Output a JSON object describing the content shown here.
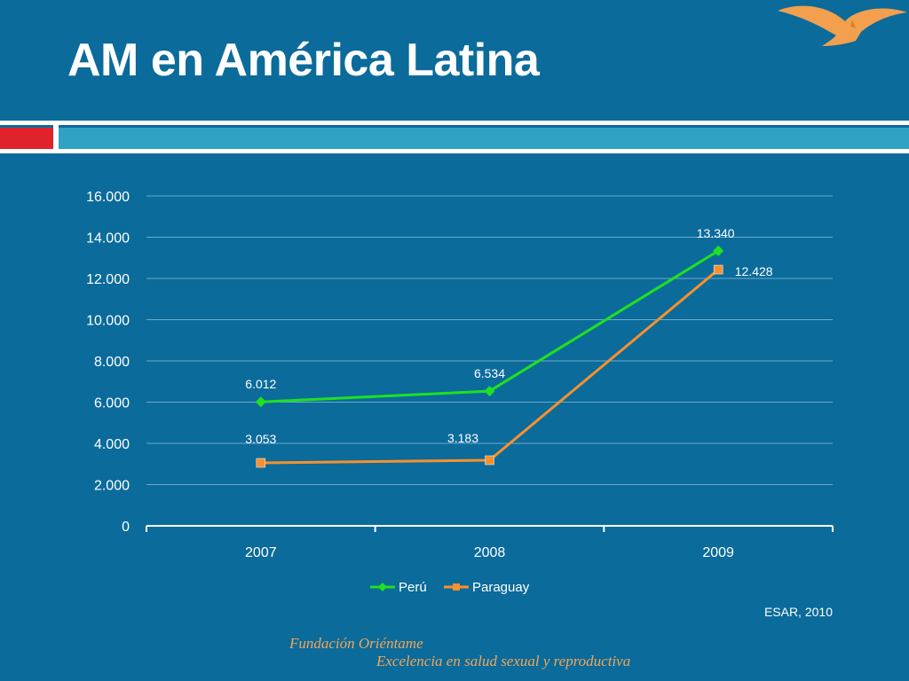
{
  "slide": {
    "title": "AM en América Latina",
    "source": "ESAR, 2010",
    "footer_org": "Fundación Oriéntame",
    "footer_tagline": "Excelencia en salud sexual y reproductiva"
  },
  "colors": {
    "background": "#0b6b9b",
    "accent_red": "#e0232a",
    "accent_teal": "#30a3c4",
    "peru_series": "#1fe11f",
    "paraguay_series": "#f7902e",
    "footer_text": "#f2a65a"
  },
  "icons": [
    "seagull-logo-icon"
  ],
  "chart_data": {
    "type": "line",
    "x": [
      "2007",
      "2008",
      "2009"
    ],
    "series": [
      {
        "name": "Perú",
        "values": [
          6012,
          6534,
          13340
        ],
        "labels": [
          "6.012",
          "6.534",
          "13.340"
        ],
        "color": "#1fe11f",
        "marker": "diamond"
      },
      {
        "name": "Paraguay",
        "values": [
          3053,
          3183,
          12428
        ],
        "labels": [
          "3.053",
          "3.183",
          "12.428"
        ],
        "color": "#f7902e",
        "marker": "square"
      }
    ],
    "y_ticks": [
      0,
      2000,
      4000,
      6000,
      8000,
      10000,
      12000,
      14000,
      16000
    ],
    "y_tick_labels": [
      "0",
      "2.000",
      "4.000",
      "6.000",
      "8.000",
      "10.000",
      "12.000",
      "14.000",
      "16.000"
    ],
    "ylim": [
      0,
      16000
    ],
    "grid": true,
    "legend_position": "bottom"
  }
}
